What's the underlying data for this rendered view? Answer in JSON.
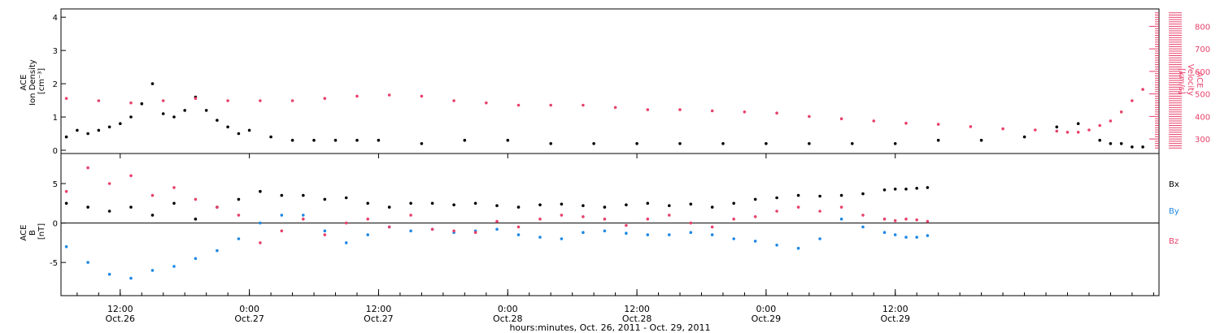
{
  "colors": {
    "density": "#000000",
    "velocity": "#e8416a",
    "bx": "#000000",
    "by": "#1e88e5",
    "bz": "#e8416a"
  },
  "chart_data": [
    {
      "type": "scatter",
      "panel": "top",
      "ylabel_left": [
        "ACE",
        "Ion Density",
        "[cm⁻³]"
      ],
      "ylabel_right": [
        "ACE",
        "Velocity",
        "[km/s]"
      ],
      "y_left_ticks": [
        "0",
        "1",
        "2",
        "3",
        "4"
      ],
      "y_left_range": [
        0,
        4.2
      ],
      "y_right_ticks": [
        "300",
        "400",
        "500",
        "600",
        "700",
        "800"
      ],
      "y_right_range": [
        250,
        870
      ],
      "x_range_hours": [
        6.5,
        108.5
      ],
      "series": [
        {
          "key": "density",
          "axis": "left",
          "x": [
            7,
            8,
            9,
            10,
            11,
            12,
            13,
            14,
            15,
            16,
            17,
            18,
            19,
            20,
            21,
            22,
            23,
            24,
            26,
            28,
            30,
            32,
            34,
            36,
            40,
            44,
            48,
            52,
            56,
            60,
            64,
            68,
            72,
            76,
            80,
            84,
            88,
            92,
            96,
            99,
            101,
            103,
            104,
            105,
            106,
            107
          ],
          "y": [
            0.4,
            0.6,
            0.5,
            0.6,
            0.7,
            0.8,
            1.0,
            1.4,
            2.0,
            1.1,
            1.0,
            1.2,
            1.6,
            1.2,
            0.9,
            0.7,
            0.5,
            0.6,
            0.4,
            0.3,
            0.3,
            0.3,
            0.3,
            0.3,
            0.2,
            0.3,
            0.3,
            0.2,
            0.2,
            0.2,
            0.2,
            0.2,
            0.2,
            0.2,
            0.2,
            0.2,
            0.3,
            0.3,
            0.4,
            0.7,
            0.8,
            0.3,
            0.2,
            0.2,
            0.1,
            0.1
          ]
        },
        {
          "key": "velocity",
          "axis": "right",
          "x": [
            7,
            10,
            13,
            16,
            19,
            22,
            25,
            28,
            31,
            34,
            37,
            40,
            43,
            46,
            49,
            52,
            55,
            58,
            61,
            64,
            67,
            70,
            73,
            76,
            79,
            82,
            85,
            88,
            91,
            94,
            97,
            99,
            100,
            101,
            102,
            103,
            104,
            105,
            106,
            107
          ],
          "y": [
            480,
            470,
            460,
            470,
            480,
            470,
            470,
            470,
            480,
            490,
            495,
            490,
            470,
            460,
            450,
            450,
            450,
            440,
            430,
            430,
            425,
            420,
            415,
            400,
            390,
            380,
            370,
            365,
            355,
            345,
            340,
            335,
            330,
            330,
            340,
            360,
            380,
            420,
            470,
            520
          ]
        }
      ]
    },
    {
      "type": "scatter",
      "panel": "bottom",
      "ylabel_left": [
        "ACE",
        "B",
        "[nT]"
      ],
      "y_ticks": [
        "-5",
        "0",
        "5"
      ],
      "y_range": [
        -9,
        8.5
      ],
      "x_range_hours": [
        6.5,
        108.5
      ],
      "x_ticks": [
        {
          "hours": 12,
          "time": "12:00",
          "date": "Oct.26"
        },
        {
          "hours": 24,
          "time": "0:00",
          "date": "Oct.27"
        },
        {
          "hours": 36,
          "time": "12:00",
          "date": "Oct.27"
        },
        {
          "hours": 48,
          "time": "0:00",
          "date": "Oct.28"
        },
        {
          "hours": 60,
          "time": "12:00",
          "date": "Oct.28"
        },
        {
          "hours": 72,
          "time": "0:00",
          "date": "Oct.29"
        },
        {
          "hours": 84,
          "time": "12:00",
          "date": "Oct.29"
        }
      ],
      "xlabel": "hours:minutes, Oct. 26, 2011 - Oct. 29, 2011",
      "legend": [
        "Bx",
        "By",
        "Bz"
      ],
      "series": [
        {
          "key": "bx",
          "name": "Bx",
          "x": [
            7,
            9,
            11,
            13,
            15,
            17,
            19,
            21,
            23,
            25,
            27,
            29,
            31,
            33,
            35,
            37,
            39,
            41,
            43,
            45,
            47,
            49,
            51,
            53,
            55,
            57,
            59,
            61,
            63,
            65,
            67,
            69,
            71,
            73,
            75,
            77,
            79,
            81,
            83,
            84,
            85,
            86,
            87
          ],
          "y": [
            2.5,
            2.0,
            1.5,
            2.0,
            1.0,
            2.5,
            0.5,
            2.0,
            3.0,
            4.0,
            3.5,
            3.5,
            3.0,
            3.2,
            2.5,
            2.0,
            2.5,
            2.5,
            2.3,
            2.5,
            2.2,
            2.0,
            2.3,
            2.4,
            2.2,
            2.0,
            2.3,
            2.5,
            2.2,
            2.4,
            2.0,
            2.5,
            3.0,
            3.2,
            3.5,
            3.4,
            3.5,
            3.7,
            4.2,
            4.3,
            4.3,
            4.4,
            4.5
          ]
        },
        {
          "key": "by",
          "name": "By",
          "x": [
            7,
            9,
            11,
            13,
            15,
            17,
            19,
            21,
            23,
            25,
            27,
            29,
            31,
            33,
            35,
            37,
            39,
            41,
            43,
            45,
            47,
            49,
            51,
            53,
            55,
            57,
            59,
            61,
            63,
            65,
            67,
            69,
            71,
            73,
            75,
            77,
            79,
            81,
            83,
            84,
            85,
            86,
            87
          ],
          "y": [
            -3.0,
            -5.0,
            -6.5,
            -7.0,
            -6.0,
            -5.5,
            -4.5,
            -3.5,
            -2.0,
            0.0,
            1.0,
            1.0,
            -1.0,
            -2.5,
            -1.5,
            -0.5,
            -1.0,
            -0.8,
            -1.2,
            -1.0,
            -0.8,
            -1.5,
            -1.8,
            -2.0,
            -1.2,
            -1.0,
            -1.3,
            -1.5,
            -1.5,
            -1.2,
            -1.5,
            -2.0,
            -2.3,
            -2.8,
            -3.2,
            -2.0,
            0.5,
            -0.5,
            -1.2,
            -1.5,
            -1.8,
            -1.8,
            -1.6
          ]
        },
        {
          "key": "bz",
          "name": "Bz",
          "x": [
            7,
            9,
            11,
            13,
            15,
            17,
            19,
            21,
            23,
            25,
            27,
            29,
            31,
            33,
            35,
            37,
            39,
            41,
            43,
            45,
            47,
            49,
            51,
            53,
            55,
            57,
            59,
            61,
            63,
            65,
            67,
            69,
            71,
            73,
            75,
            77,
            79,
            81,
            83,
            84,
            85,
            86,
            87
          ],
          "y": [
            4.0,
            7.0,
            5.0,
            6.0,
            3.5,
            4.5,
            3.0,
            2.0,
            1.0,
            -2.5,
            -1.0,
            0.5,
            -1.5,
            0.0,
            0.5,
            -0.5,
            1.0,
            -0.8,
            -1.0,
            -1.2,
            0.2,
            -0.5,
            0.5,
            1.0,
            0.8,
            0.5,
            -0.3,
            0.5,
            1.0,
            0.0,
            -0.5,
            0.5,
            0.8,
            1.5,
            2.0,
            1.5,
            2.0,
            1.0,
            0.5,
            0.3,
            0.5,
            0.4,
            0.2
          ]
        }
      ]
    }
  ]
}
